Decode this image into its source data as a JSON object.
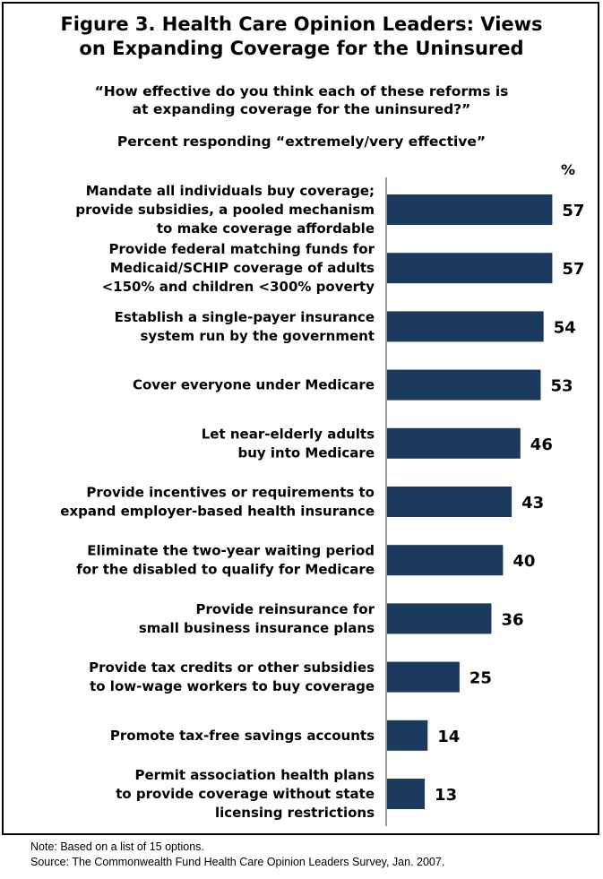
{
  "figure": {
    "title_line1": "Figure 3. Health Care Opinion Leaders: Views",
    "title_line2": "on Expanding Coverage for the Uninsured",
    "question_line1": "“How effective do you think each of these reforms is",
    "question_line2": "at expanding coverage for the uninsured?”",
    "subtitle": "Percent responding “extremely/very effective”",
    "unit": "%",
    "note": "Note: Based on a list of 15 options.",
    "source": "Source: The Commonwealth Fund Health Care Opinion Leaders Survey, Jan. 2007."
  },
  "chart_data": {
    "type": "bar",
    "orientation": "horizontal",
    "title": "Figure 3. Health Care Opinion Leaders: Views on Expanding Coverage for the Uninsured",
    "xlim": [
      0,
      60
    ],
    "bar_color": "#1b3a5e",
    "categories": [
      [
        "Mandate all individuals buy coverage;",
        "provide subsidies, a pooled mechanism",
        "to make coverage affordable"
      ],
      [
        "Provide federal matching funds for",
        "Medicaid/SCHIP coverage of adults",
        "<150% and children <300% poverty"
      ],
      [
        "Establish a single-payer insurance",
        "system run by the government"
      ],
      [
        "Cover everyone under Medicare"
      ],
      [
        "Let near-elderly adults",
        "buy into Medicare"
      ],
      [
        "Provide incentives or requirements to",
        "expand employer-based health insurance"
      ],
      [
        "Eliminate the two-year waiting period",
        "for the disabled to qualify for Medicare"
      ],
      [
        "Provide reinsurance for",
        "small business insurance plans"
      ],
      [
        "Provide tax credits or other subsidies",
        "to low-wage workers to buy coverage"
      ],
      [
        "Promote tax-free savings accounts"
      ],
      [
        "Permit association health plans",
        "to provide coverage without state",
        "licensing restrictions"
      ]
    ],
    "values": [
      57,
      57,
      54,
      53,
      46,
      43,
      40,
      36,
      25,
      14,
      13
    ]
  }
}
